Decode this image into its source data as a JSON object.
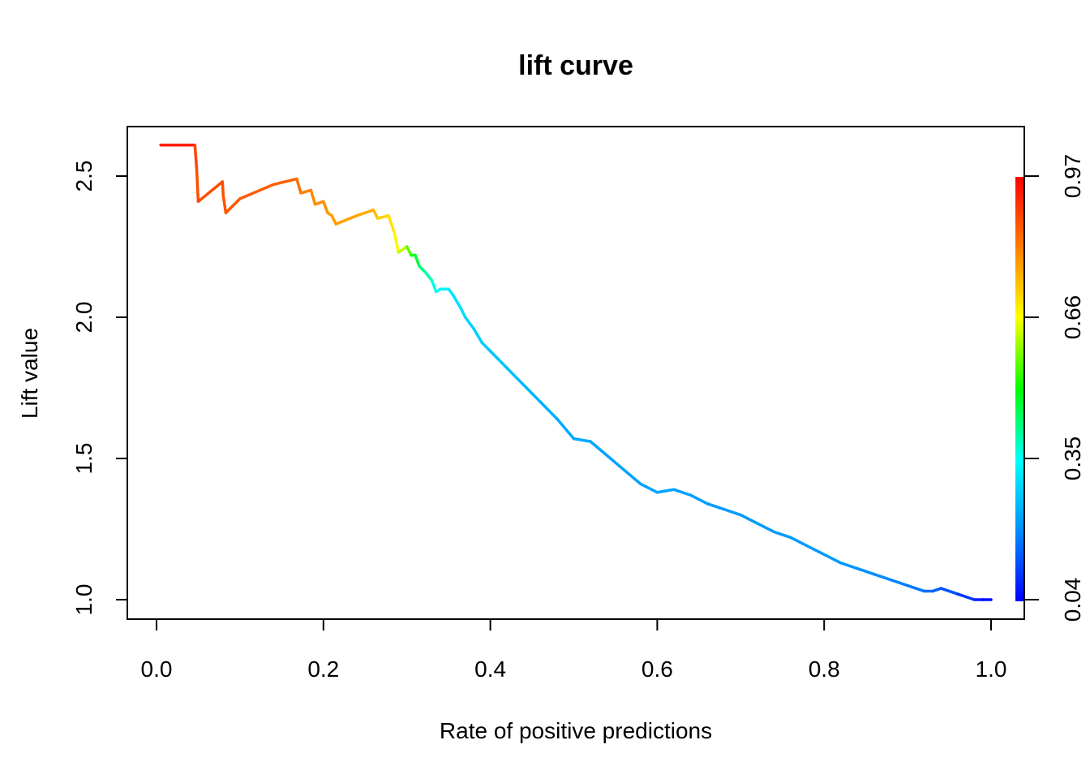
{
  "chart_data": {
    "type": "line",
    "title": "lift curve",
    "xlabel": "Rate of positive predictions",
    "ylabel": "Lift value",
    "xlim": [
      0.0,
      1.0
    ],
    "ylim": [
      1.0,
      2.6
    ],
    "x_ticks": [
      "0.0",
      "0.2",
      "0.4",
      "0.6",
      "0.8",
      "1.0"
    ],
    "y_ticks": [
      "1.0",
      "1.5",
      "2.0",
      "2.5"
    ],
    "grid": false,
    "colorkey": {
      "ticks": [
        "0.04",
        "0.35",
        "0.66",
        "0.97"
      ],
      "range": [
        0.04,
        0.97
      ],
      "colors": [
        "#0000ff",
        "#00a0ff",
        "#00ffff",
        "#00ff00",
        "#ffff00",
        "#ff8000",
        "#ff0000"
      ]
    },
    "series": [
      {
        "x": [
          0.005,
          0.046,
          0.048,
          0.05,
          0.079,
          0.08,
          0.083,
          0.1,
          0.14,
          0.168,
          0.173,
          0.185,
          0.19,
          0.2,
          0.205,
          0.21,
          0.215,
          0.24,
          0.26,
          0.265,
          0.278,
          0.285,
          0.29,
          0.3,
          0.305,
          0.31,
          0.315,
          0.322,
          0.33,
          0.335,
          0.34,
          0.35,
          0.355,
          0.365,
          0.37,
          0.38,
          0.39,
          0.4,
          0.42,
          0.44,
          0.46,
          0.48,
          0.5,
          0.52,
          0.54,
          0.56,
          0.58,
          0.6,
          0.62,
          0.63,
          0.64,
          0.66,
          0.68,
          0.7,
          0.72,
          0.74,
          0.76,
          0.78,
          0.8,
          0.82,
          0.84,
          0.86,
          0.88,
          0.9,
          0.92,
          0.93,
          0.94,
          0.96,
          0.98,
          0.99,
          1.0
        ],
        "y": [
          2.61,
          2.61,
          2.53,
          2.41,
          2.48,
          2.43,
          2.37,
          2.42,
          2.47,
          2.49,
          2.44,
          2.45,
          2.4,
          2.41,
          2.37,
          2.36,
          2.33,
          2.36,
          2.38,
          2.35,
          2.36,
          2.3,
          2.23,
          2.25,
          2.22,
          2.22,
          2.18,
          2.16,
          2.13,
          2.09,
          2.1,
          2.1,
          2.08,
          2.03,
          2.0,
          1.96,
          1.91,
          1.88,
          1.82,
          1.76,
          1.7,
          1.64,
          1.57,
          1.56,
          1.51,
          1.46,
          1.41,
          1.38,
          1.39,
          1.38,
          1.37,
          1.34,
          1.32,
          1.3,
          1.27,
          1.24,
          1.22,
          1.19,
          1.16,
          1.13,
          1.11,
          1.09,
          1.07,
          1.05,
          1.03,
          1.03,
          1.04,
          1.02,
          1.0,
          1.0,
          1.0
        ],
        "cutoff": [
          0.97,
          0.9,
          0.88,
          0.87,
          0.88,
          0.87,
          0.87,
          0.86,
          0.86,
          0.85,
          0.82,
          0.81,
          0.8,
          0.8,
          0.79,
          0.78,
          0.78,
          0.77,
          0.76,
          0.72,
          0.71,
          0.68,
          0.66,
          0.58,
          0.54,
          0.5,
          0.44,
          0.42,
          0.38,
          0.36,
          0.35,
          0.32,
          0.31,
          0.3,
          0.29,
          0.28,
          0.27,
          0.26,
          0.25,
          0.24,
          0.23,
          0.22,
          0.21,
          0.21,
          0.2,
          0.2,
          0.2,
          0.2,
          0.2,
          0.2,
          0.2,
          0.19,
          0.19,
          0.19,
          0.19,
          0.19,
          0.19,
          0.19,
          0.19,
          0.19,
          0.18,
          0.18,
          0.17,
          0.16,
          0.15,
          0.14,
          0.13,
          0.11,
          0.08,
          0.06,
          0.04
        ]
      }
    ]
  }
}
